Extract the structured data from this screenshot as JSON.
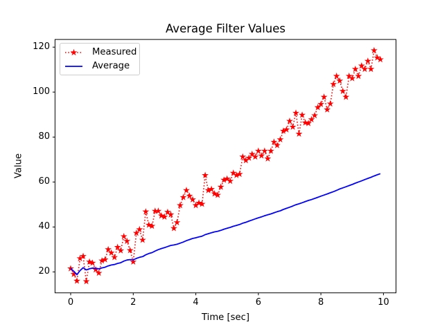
{
  "chart_data": {
    "type": "line",
    "title": "Average Filter Values",
    "xlabel": "Time [sec]",
    "ylabel": "Value",
    "x_ticks": [
      0,
      2,
      4,
      6,
      8,
      10
    ],
    "y_ticks": [
      20,
      40,
      60,
      80,
      100,
      120
    ],
    "xlim": [
      -0.5,
      10.4
    ],
    "ylim": [
      10.7,
      123.4
    ],
    "grid": false,
    "legend": {
      "position": "upper left"
    },
    "colors": {
      "measured": "#ff0000",
      "average": "#0000ff",
      "axes": "#000000",
      "legend_border": "#cccccc"
    },
    "x": [
      0.0,
      0.1,
      0.2,
      0.3,
      0.4,
      0.5,
      0.6,
      0.7,
      0.8,
      0.9,
      1.0,
      1.1,
      1.2,
      1.3,
      1.4,
      1.5,
      1.6,
      1.7,
      1.8,
      1.9,
      2.0,
      2.1,
      2.2,
      2.3,
      2.4,
      2.5,
      2.6,
      2.7,
      2.8,
      2.9,
      3.0,
      3.1,
      3.2,
      3.3,
      3.4,
      3.5,
      3.6,
      3.7,
      3.8,
      3.9,
      4.0,
      4.1,
      4.2,
      4.3,
      4.4,
      4.5,
      4.6,
      4.7,
      4.8,
      4.9,
      5.0,
      5.1,
      5.2,
      5.3,
      5.4,
      5.5,
      5.6,
      5.7,
      5.8,
      5.9,
      6.0,
      6.1,
      6.2,
      6.3,
      6.4,
      6.5,
      6.6,
      6.7,
      6.8,
      6.9,
      7.0,
      7.1,
      7.2,
      7.3,
      7.4,
      7.5,
      7.6,
      7.7,
      7.8,
      7.9,
      8.0,
      8.1,
      8.2,
      8.3,
      8.4,
      8.5,
      8.6,
      8.7,
      8.8,
      8.9,
      9.0,
      9.1,
      9.2,
      9.3,
      9.4,
      9.5,
      9.6,
      9.7,
      9.8,
      9.9
    ],
    "series": [
      {
        "name": "Measured",
        "color": "#ff0000",
        "linestyle": "dotted",
        "marker": "star",
        "values": [
          21.5,
          19.0,
          16.0,
          26.0,
          27.0,
          15.8,
          24.5,
          24.0,
          21.0,
          19.5,
          25.0,
          25.5,
          30.0,
          28.5,
          26.5,
          31.0,
          29.5,
          35.8,
          33.7,
          29.6,
          24.5,
          37.3,
          38.9,
          34.2,
          46.8,
          40.9,
          40.4,
          47.1,
          47.1,
          45.0,
          44.5,
          46.6,
          45.5,
          39.4,
          42.0,
          49.6,
          53.2,
          56.3,
          53.8,
          52.2,
          49.6,
          50.7,
          50.2,
          63.0,
          56.3,
          56.8,
          54.8,
          54.2,
          57.8,
          60.9,
          61.4,
          60.4,
          64.0,
          63.0,
          63.5,
          71.2,
          69.6,
          70.7,
          72.4,
          71.2,
          73.8,
          71.7,
          73.8,
          70.4,
          73.8,
          77.8,
          76.3,
          78.9,
          82.7,
          83.3,
          87.1,
          84.5,
          90.7,
          81.4,
          89.8,
          86.4,
          86.1,
          87.8,
          89.6,
          93.2,
          94.6,
          97.8,
          92.2,
          94.8,
          103.5,
          107.1,
          105.0,
          100.4,
          97.8,
          107.1,
          106.1,
          110.2,
          107.1,
          111.7,
          110.2,
          113.8,
          110.2,
          118.5,
          115.3,
          114.5
        ]
      },
      {
        "name": "Average",
        "color": "#0000ff",
        "linestyle": "solid",
        "marker": "none",
        "values": [
          21.5,
          20.3,
          18.8,
          20.6,
          21.9,
          20.9,
          21.4,
          21.7,
          21.6,
          21.4,
          21.8,
          22.1,
          22.7,
          23.1,
          23.3,
          23.8,
          24.1,
          24.8,
          25.3,
          25.5,
          25.4,
          26.0,
          26.5,
          26.8,
          27.6,
          28.2,
          28.6,
          29.3,
          29.9,
          30.4,
          30.8,
          31.3,
          31.8,
          32.0,
          32.3,
          32.8,
          33.3,
          33.9,
          34.4,
          34.9,
          35.2,
          35.6,
          35.9,
          36.6,
          37.0,
          37.4,
          37.8,
          38.1,
          38.5,
          39.0,
          39.4,
          39.8,
          40.3,
          40.7,
          41.1,
          41.7,
          42.1,
          42.6,
          43.1,
          43.6,
          44.1,
          44.5,
          45.0,
          45.4,
          45.8,
          46.3,
          46.8,
          47.2,
          47.8,
          48.3,
          48.8,
          49.3,
          49.9,
          50.3,
          50.8,
          51.3,
          51.8,
          52.2,
          52.7,
          53.2,
          53.7,
          54.2,
          54.7,
          55.2,
          55.7,
          56.3,
          56.9,
          57.4,
          57.9,
          58.4,
          58.9,
          59.5,
          60.0,
          60.5,
          61.1,
          61.6,
          62.1,
          62.7,
          63.2,
          63.7
        ]
      }
    ]
  }
}
